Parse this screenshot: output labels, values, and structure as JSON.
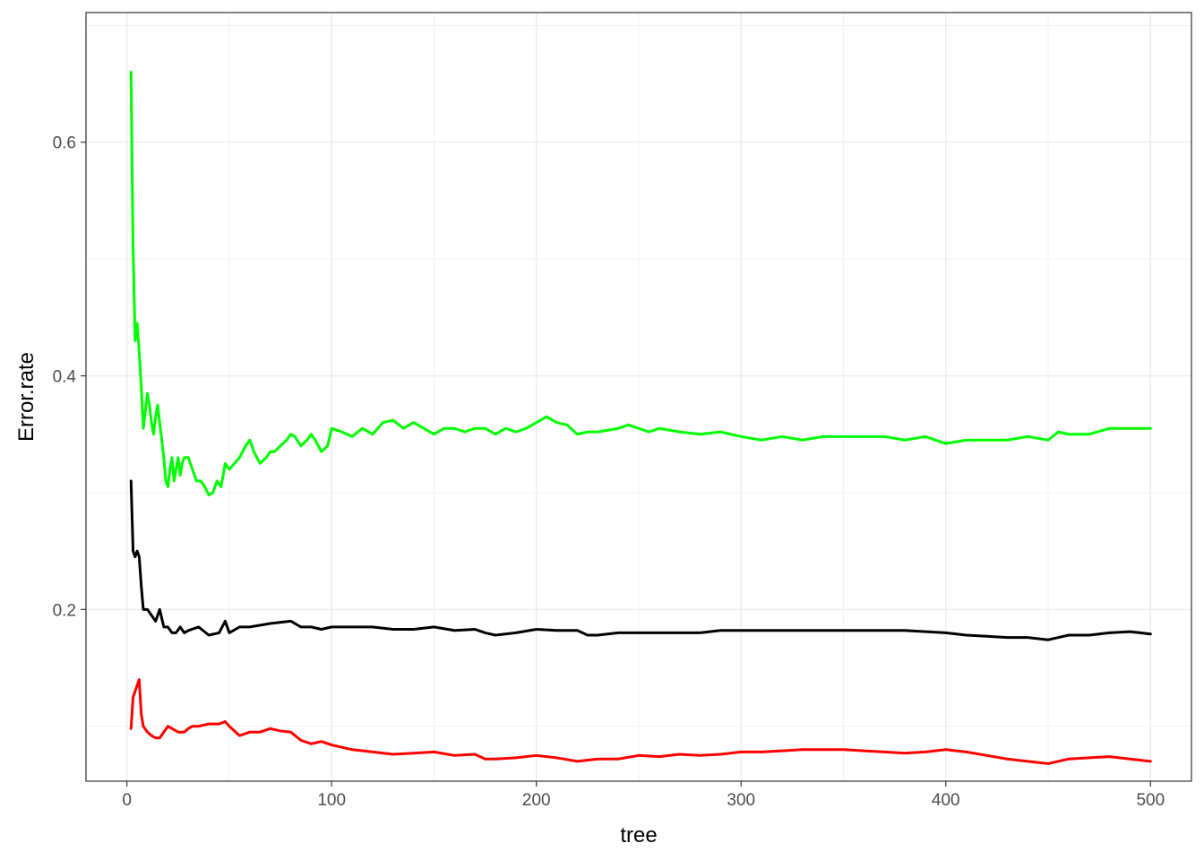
{
  "chart_data": {
    "type": "line",
    "title": "",
    "xlabel": "tree",
    "ylabel": "Error.rate",
    "xlim": [
      -20,
      520
    ],
    "ylim": [
      0.053,
      0.711
    ],
    "x_ticks": [
      0,
      100,
      200,
      300,
      400,
      500
    ],
    "x_tick_labels": [
      "0",
      "100",
      "200",
      "300",
      "400",
      "500"
    ],
    "y_ticks": [
      0.2,
      0.4,
      0.6
    ],
    "y_tick_labels": [
      "0.2",
      "0.4",
      "0.6"
    ],
    "grid": true,
    "legend": "none",
    "series": [
      {
        "color": "#00ff00",
        "x": [
          2,
          2.5,
          3,
          3.5,
          4,
          5,
          6,
          7,
          8,
          9,
          10,
          11,
          12,
          13,
          14,
          15,
          16,
          17,
          18,
          19,
          20,
          21,
          22,
          23,
          24,
          25,
          26,
          27,
          28,
          30,
          32,
          34,
          36,
          38,
          40,
          42,
          44,
          46,
          48,
          50,
          55,
          58,
          60,
          62,
          65,
          68,
          70,
          72,
          75,
          78,
          80,
          82,
          85,
          88,
          90,
          92,
          95,
          98,
          100,
          105,
          110,
          115,
          120,
          125,
          130,
          135,
          140,
          145,
          150,
          155,
          160,
          165,
          170,
          175,
          180,
          185,
          190,
          195,
          200,
          205,
          210,
          215,
          220,
          225,
          230,
          240,
          245,
          250,
          255,
          260,
          270,
          280,
          290,
          300,
          310,
          320,
          330,
          340,
          350,
          360,
          370,
          380,
          390,
          400,
          410,
          420,
          430,
          440,
          450,
          455,
          460,
          470,
          480,
          490,
          500
        ],
        "values": [
          0.66,
          0.58,
          0.51,
          0.47,
          0.43,
          0.445,
          0.42,
          0.39,
          0.355,
          0.37,
          0.385,
          0.375,
          0.36,
          0.35,
          0.365,
          0.375,
          0.36,
          0.345,
          0.33,
          0.31,
          0.305,
          0.32,
          0.33,
          0.31,
          0.32,
          0.33,
          0.315,
          0.325,
          0.33,
          0.33,
          0.32,
          0.31,
          0.31,
          0.305,
          0.298,
          0.3,
          0.31,
          0.305,
          0.325,
          0.32,
          0.33,
          0.34,
          0.345,
          0.335,
          0.325,
          0.33,
          0.335,
          0.335,
          0.34,
          0.345,
          0.35,
          0.348,
          0.34,
          0.345,
          0.35,
          0.345,
          0.335,
          0.34,
          0.355,
          0.352,
          0.348,
          0.355,
          0.35,
          0.36,
          0.362,
          0.355,
          0.36,
          0.355,
          0.35,
          0.355,
          0.355,
          0.352,
          0.355,
          0.355,
          0.35,
          0.355,
          0.352,
          0.355,
          0.36,
          0.365,
          0.36,
          0.358,
          0.35,
          0.352,
          0.352,
          0.355,
          0.358,
          0.355,
          0.352,
          0.355,
          0.352,
          0.35,
          0.352,
          0.348,
          0.345,
          0.348,
          0.345,
          0.348,
          0.348,
          0.348,
          0.348,
          0.345,
          0.348,
          0.342,
          0.345,
          0.345,
          0.345,
          0.348,
          0.345,
          0.352,
          0.35,
          0.35,
          0.355,
          0.355,
          0.355
        ]
      },
      {
        "color": "#000000",
        "x": [
          2,
          3,
          4,
          5,
          6,
          7,
          8,
          10,
          12,
          14,
          16,
          18,
          20,
          22,
          24,
          26,
          28,
          30,
          35,
          40,
          45,
          48,
          50,
          55,
          60,
          70,
          80,
          85,
          90,
          95,
          100,
          110,
          120,
          130,
          140,
          150,
          160,
          170,
          175,
          180,
          190,
          200,
          210,
          220,
          225,
          230,
          240,
          250,
          260,
          270,
          280,
          290,
          300,
          320,
          340,
          360,
          380,
          400,
          410,
          420,
          430,
          440,
          450,
          460,
          470,
          480,
          490,
          500
        ],
        "values": [
          0.31,
          0.25,
          0.245,
          0.25,
          0.245,
          0.22,
          0.2,
          0.2,
          0.195,
          0.19,
          0.2,
          0.185,
          0.185,
          0.18,
          0.18,
          0.185,
          0.18,
          0.182,
          0.185,
          0.178,
          0.18,
          0.19,
          0.18,
          0.185,
          0.185,
          0.188,
          0.19,
          0.185,
          0.185,
          0.183,
          0.185,
          0.185,
          0.185,
          0.183,
          0.183,
          0.185,
          0.182,
          0.183,
          0.18,
          0.178,
          0.18,
          0.183,
          0.182,
          0.182,
          0.178,
          0.178,
          0.18,
          0.18,
          0.18,
          0.18,
          0.18,
          0.182,
          0.182,
          0.182,
          0.182,
          0.182,
          0.182,
          0.18,
          0.178,
          0.177,
          0.176,
          0.176,
          0.174,
          0.178,
          0.178,
          0.18,
          0.181,
          0.179
        ]
      },
      {
        "color": "#ff0000",
        "x": [
          2,
          3,
          4,
          5,
          6,
          7,
          8,
          10,
          12,
          14,
          16,
          18,
          20,
          22,
          25,
          28,
          30,
          32,
          35,
          40,
          45,
          48,
          50,
          55,
          60,
          65,
          70,
          75,
          80,
          85,
          90,
          95,
          100,
          110,
          120,
          130,
          140,
          150,
          160,
          170,
          175,
          180,
          190,
          200,
          210,
          220,
          230,
          240,
          250,
          260,
          270,
          280,
          290,
          300,
          310,
          320,
          330,
          340,
          350,
          360,
          370,
          380,
          390,
          400,
          410,
          420,
          430,
          440,
          450,
          455,
          460,
          470,
          480,
          490,
          500
        ],
        "values": [
          0.098,
          0.125,
          0.13,
          0.135,
          0.14,
          0.11,
          0.1,
          0.095,
          0.092,
          0.09,
          0.09,
          0.095,
          0.1,
          0.098,
          0.095,
          0.095,
          0.098,
          0.1,
          0.1,
          0.102,
          0.102,
          0.104,
          0.1,
          0.092,
          0.095,
          0.095,
          0.098,
          0.096,
          0.095,
          0.088,
          0.085,
          0.087,
          0.084,
          0.08,
          0.078,
          0.076,
          0.077,
          0.078,
          0.075,
          0.076,
          0.072,
          0.072,
          0.073,
          0.075,
          0.073,
          0.07,
          0.072,
          0.072,
          0.075,
          0.074,
          0.076,
          0.075,
          0.076,
          0.078,
          0.078,
          0.079,
          0.08,
          0.08,
          0.08,
          0.079,
          0.078,
          0.077,
          0.078,
          0.08,
          0.078,
          0.075,
          0.072,
          0.07,
          0.068,
          0.07,
          0.072,
          0.073,
          0.074,
          0.072,
          0.07
        ]
      }
    ]
  }
}
